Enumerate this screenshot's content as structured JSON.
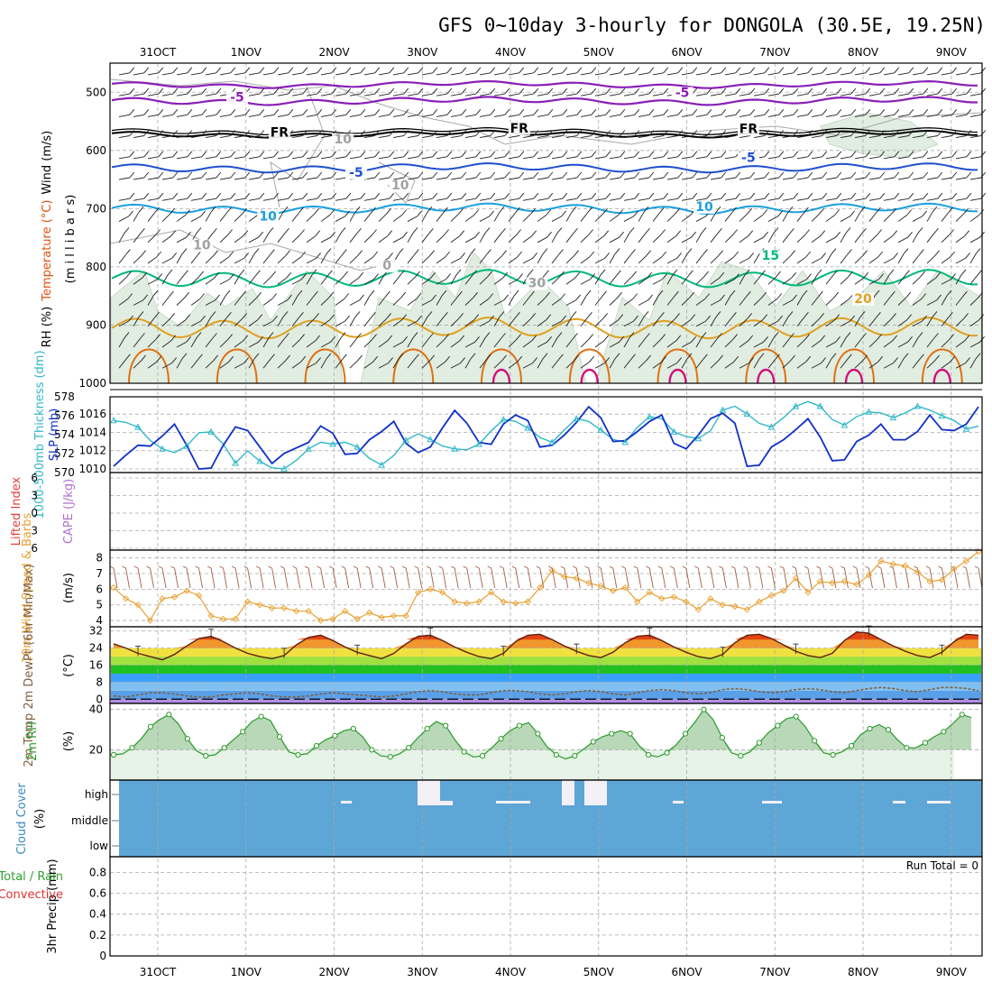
{
  "title": "GFS 0~10day 3-hourly for DONGOLA (30.5E, 19.25N)",
  "colors": {
    "temp_neg": "#8a1fb8",
    "fr": "#000000",
    "temp_5": "#1f4fd0",
    "temp_10": "#1a9fe0",
    "temp_15": "#00b87a",
    "temp_20": "#e0a020",
    "temp_25": "#e07010",
    "temp_30": "#d0107a",
    "rh_fill": "#dcebdc",
    "thick": "#30b8c8",
    "slp": "#1030c8",
    "lifted": "#e04040",
    "cape": "#b070d0",
    "wind10": "#e8a030",
    "barb10": "#a06040",
    "tmax": "#e05010",
    "dew": "#806040",
    "rh2m": "#2a9a2a",
    "cloud": "#5ea6d6",
    "precip_total": "#30a030",
    "precip_conv": "#e03030"
  },
  "chart_data": [
    {
      "panel": "upper-air",
      "type": "heatmap",
      "ylabel_parts": [
        "Wind (m/s)",
        "Temperature (°C)",
        "RH (%)"
      ],
      "y_unit": "(m i l l i b a r s)",
      "yticks": [
        500,
        600,
        700,
        800,
        900,
        1000
      ],
      "ylim": [
        450,
        1000
      ],
      "xticks": [
        "31OCT",
        "1NOV",
        "2NOV",
        "3NOV",
        "4NOV",
        "5NOV",
        "6NOV",
        "7NOV",
        "8NOV",
        "9NOV"
      ],
      "contour_labels": [
        {
          "text": "-5",
          "level": "temp_neg",
          "day": 0.9,
          "p": 516
        },
        {
          "text": "-5",
          "level": "temp_neg",
          "day": 5.95,
          "p": 508
        },
        {
          "text": "FR",
          "level": "fr",
          "day": 1.38,
          "p": 576
        },
        {
          "text": "FR",
          "level": "fr",
          "day": 4.1,
          "p": 569
        },
        {
          "text": "FR",
          "level": "fr",
          "day": 6.7,
          "p": 570
        },
        {
          "text": "-5",
          "level": "temp_5",
          "day": 2.25,
          "p": 645
        },
        {
          "text": "-5",
          "level": "temp_5",
          "day": 6.7,
          "p": 620
        },
        {
          "text": "10",
          "level": "temp_10",
          "day": 1.25,
          "p": 720
        },
        {
          "text": "10",
          "level": "temp_10",
          "day": 6.2,
          "p": 704
        },
        {
          "text": "15",
          "level": "temp_15",
          "day": 6.95,
          "p": 788
        },
        {
          "text": "20",
          "level": "temp_20",
          "day": 8.0,
          "p": 862
        },
        {
          "text": "10",
          "level": "rh",
          "day": 0.5,
          "p": 770
        },
        {
          "text": "0",
          "level": "rh",
          "day": 2.6,
          "p": 805
        },
        {
          "text": "30",
          "level": "rh",
          "day": 4.3,
          "p": 835
        },
        {
          "text": "10",
          "level": "rh",
          "day": 2.1,
          "p": 588
        },
        {
          "text": "10",
          "level": "rh",
          "day": 2.75,
          "p": 667
        }
      ]
    },
    {
      "panel": "thickness-slp",
      "type": "line",
      "ylabel": "1000-500mb Thickness (dm)",
      "ylabel2": "SLP (mb)",
      "thickness_ticks": [
        570,
        572,
        574,
        576,
        578
      ],
      "slp_ticks": [
        1010,
        1012,
        1014,
        1016
      ],
      "series": [
        {
          "name": "1000-500mb Thickness (dm)",
          "values": [
            575.5,
            575.3,
            574.8,
            573.4,
            572.5,
            572.1,
            572.8,
            574.2,
            574.3,
            573.0,
            571.0,
            572.3,
            571.2,
            570.5,
            570.4,
            571.3,
            572.5,
            573.2,
            573.0,
            573.2,
            572.7,
            571.5,
            570.8,
            571.8,
            573.4,
            574.1,
            573.5,
            572.8,
            572.5,
            572.4,
            573.0,
            574.4,
            575.6,
            575.4,
            574.7,
            573.7,
            573.2,
            574.5,
            575.7,
            575.4,
            574.5,
            573.5,
            573.2,
            574.8,
            575.9,
            575.7,
            574.3,
            573.8,
            573.6,
            574.4,
            576.6,
            577.0,
            576.2,
            575.2,
            574.8,
            575.8,
            577.0,
            577.5,
            577.0,
            575.6,
            575.0,
            575.9,
            576.4,
            576.3,
            575.8,
            576.3,
            577.0,
            576.6,
            576.0,
            575.5,
            574.6,
            574.9
          ]
        },
        {
          "name": "SLP (mb)",
          "values": [
            1010.3,
            1011.5,
            1012.6,
            1012.5,
            1013.6,
            1014.9,
            1012.6,
            1010.0,
            1010.1,
            1012.6,
            1014.6,
            1014.2,
            1012.4,
            1010.6,
            1011.7,
            1012.3,
            1012.9,
            1014.7,
            1013.9,
            1011.6,
            1011.7,
            1013.2,
            1014.1,
            1015.2,
            1012.8,
            1011.8,
            1012.4,
            1014.5,
            1016.4,
            1015.0,
            1012.9,
            1012.7,
            1014.9,
            1015.9,
            1015.3,
            1012.4,
            1012.6,
            1013.7,
            1015.1,
            1016.8,
            1015.6,
            1013.0,
            1013.1,
            1014.1,
            1015.2,
            1015.9,
            1012.8,
            1012.2,
            1013.7,
            1015.5,
            1016.1,
            1015.0,
            1010.3,
            1010.4,
            1012.4,
            1013.2,
            1014.3,
            1015.5,
            1013.5,
            1010.9,
            1011.0,
            1013.0,
            1013.7,
            1014.9,
            1013.2,
            1013.2,
            1014.1,
            1015.9,
            1014.3,
            1014.2,
            1014.9,
            1016.8
          ]
        }
      ]
    },
    {
      "panel": "lifted-cape",
      "type": "line",
      "ylabel": "Lifted Index",
      "ylabel2": "CAPE (J/kg)",
      "yticks": [
        -6,
        -3,
        0,
        3,
        6
      ],
      "series": []
    },
    {
      "panel": "wind10m",
      "type": "line",
      "ylabel": "10m Wind Speed & Barbs",
      "y_unit": "(m/s)",
      "yticks": [
        4,
        5,
        6,
        7,
        8
      ],
      "ylim": [
        3.6,
        8.5
      ],
      "series": [
        {
          "name": "10m Wind Speed",
          "values": [
            6.1,
            5.4,
            5.0,
            4.0,
            5.4,
            5.5,
            5.9,
            5.6,
            4.3,
            4.1,
            4.1,
            5.2,
            5.0,
            4.8,
            4.8,
            4.6,
            4.6,
            4.0,
            4.1,
            4.6,
            4.1,
            4.5,
            4.2,
            4.3,
            4.3,
            5.8,
            6.0,
            5.8,
            5.2,
            5.1,
            5.2,
            5.8,
            5.2,
            5.1,
            5.2,
            6.1,
            7.2,
            6.8,
            6.7,
            6.4,
            6.2,
            5.9,
            6.1,
            5.2,
            5.8,
            5.4,
            5.5,
            5.2,
            4.7,
            5.4,
            5.0,
            4.9,
            4.7,
            5.2,
            5.6,
            5.9,
            6.7,
            5.8,
            6.5,
            6.4,
            6.5,
            6.3,
            6.9,
            7.8,
            7.6,
            7.5,
            7.1,
            6.5,
            6.6,
            7.3,
            7.8,
            8.4
          ]
        }
      ]
    },
    {
      "panel": "temperature",
      "type": "area",
      "ylabel": "2m Temp 2m DewPt (6hr Min/Max)",
      "y_unit": "(°C)",
      "yticks": [
        0,
        8,
        16,
        24,
        32
      ],
      "ylim": [
        -2,
        34
      ],
      "series": [
        {
          "name": "2m Temp",
          "values": [
            26.0,
            24.0,
            21.5,
            20.0,
            18.5,
            21.0,
            25.0,
            28.5,
            29.5,
            27.0,
            24.0,
            21.5,
            20.0,
            19.0,
            20.5,
            25.5,
            29.0,
            30.0,
            27.5,
            24.5,
            22.0,
            20.5,
            19.0,
            21.5,
            26.0,
            29.5,
            30.0,
            27.5,
            24.5,
            22.0,
            20.0,
            19.0,
            21.5,
            27.0,
            30.0,
            30.5,
            28.0,
            25.0,
            22.5,
            20.5,
            19.5,
            22.0,
            26.5,
            29.5,
            30.0,
            27.5,
            24.5,
            22.0,
            20.0,
            19.0,
            21.0,
            26.5,
            30.0,
            30.5,
            28.5,
            25.5,
            22.5,
            20.5,
            19.5,
            21.5,
            27.5,
            31.5,
            31.0,
            28.0,
            25.0,
            22.5,
            20.5,
            19.5,
            22.0,
            27.0,
            30.5,
            30.0
          ]
        },
        {
          "name": "2m DewPt",
          "values": [
            1.5,
            1.0,
            2.0,
            3.0,
            3.0,
            2.5,
            1.5,
            1.0,
            1.0,
            2.0,
            2.5,
            3.0,
            2.5,
            1.5,
            1.0,
            1.0,
            1.5,
            2.5,
            3.0,
            2.5,
            2.0,
            1.5,
            1.0,
            1.5,
            2.5,
            3.5,
            4.0,
            3.5,
            2.5,
            2.0,
            2.0,
            3.0,
            4.0,
            4.0,
            3.5,
            2.5,
            2.0,
            2.5,
            3.5,
            4.0,
            3.5,
            2.5,
            2.0,
            3.0,
            4.0,
            4.5,
            4.0,
            3.0,
            2.5,
            3.0,
            4.5,
            5.0,
            4.5,
            3.5,
            3.0,
            3.5,
            4.5,
            5.0,
            4.5,
            3.5,
            3.0,
            4.0,
            5.0,
            5.5,
            5.0,
            4.0,
            3.5,
            4.5,
            5.5,
            5.5,
            5.0,
            4.0
          ]
        }
      ]
    },
    {
      "panel": "rh2m",
      "type": "area",
      "ylabel": "2m RH",
      "y_unit": "(%)",
      "yticks": [
        20,
        40
      ],
      "ylim": [
        5,
        43
      ],
      "series": [
        {
          "name": "2m RH",
          "values": [
            17.5,
            18.0,
            21.0,
            25.5,
            31.5,
            35.0,
            37.5,
            33.0,
            25.5,
            19.5,
            17.0,
            17.5,
            21.0,
            25.0,
            29.0,
            34.0,
            36.5,
            34.5,
            26.5,
            19.0,
            17.5,
            18.0,
            22.0,
            25.0,
            27.0,
            29.5,
            30.5,
            26.5,
            20.0,
            17.0,
            16.5,
            18.0,
            21.0,
            26.0,
            30.5,
            34.0,
            32.0,
            25.0,
            19.0,
            16.5,
            17.0,
            21.0,
            25.5,
            29.5,
            32.0,
            33.5,
            28.0,
            21.5,
            17.5,
            15.5,
            17.0,
            20.5,
            24.0,
            26.5,
            28.0,
            29.5,
            28.0,
            22.0,
            17.5,
            16.5,
            18.5,
            22.5,
            28.0,
            33.5,
            40.0,
            35.0,
            26.0,
            18.5,
            17.0,
            19.0,
            23.5,
            28.5,
            32.0,
            35.5,
            36.5,
            31.5,
            24.5,
            18.5,
            17.5,
            19.0,
            22.0,
            27.5,
            30.5,
            32.5,
            30.0,
            25.0,
            21.0,
            21.0,
            23.5,
            26.5,
            29.0,
            33.0,
            37.5,
            36.0
          ]
        }
      ]
    },
    {
      "panel": "cloud",
      "type": "heatmap",
      "ylabel": "Cloud Cover",
      "y_unit": "(%)",
      "levels": [
        "high",
        "middle",
        "low"
      ]
    },
    {
      "panel": "precip",
      "type": "bar",
      "ylabel": "3hr Precip (mm)",
      "legend": [
        "Total / Rain",
        "Convective"
      ],
      "yticks": [
        0,
        0.2,
        0.4,
        0.6,
        0.8
      ],
      "ylim": [
        0,
        0.95
      ],
      "annotation": "Run Total = 0",
      "series": []
    }
  ]
}
